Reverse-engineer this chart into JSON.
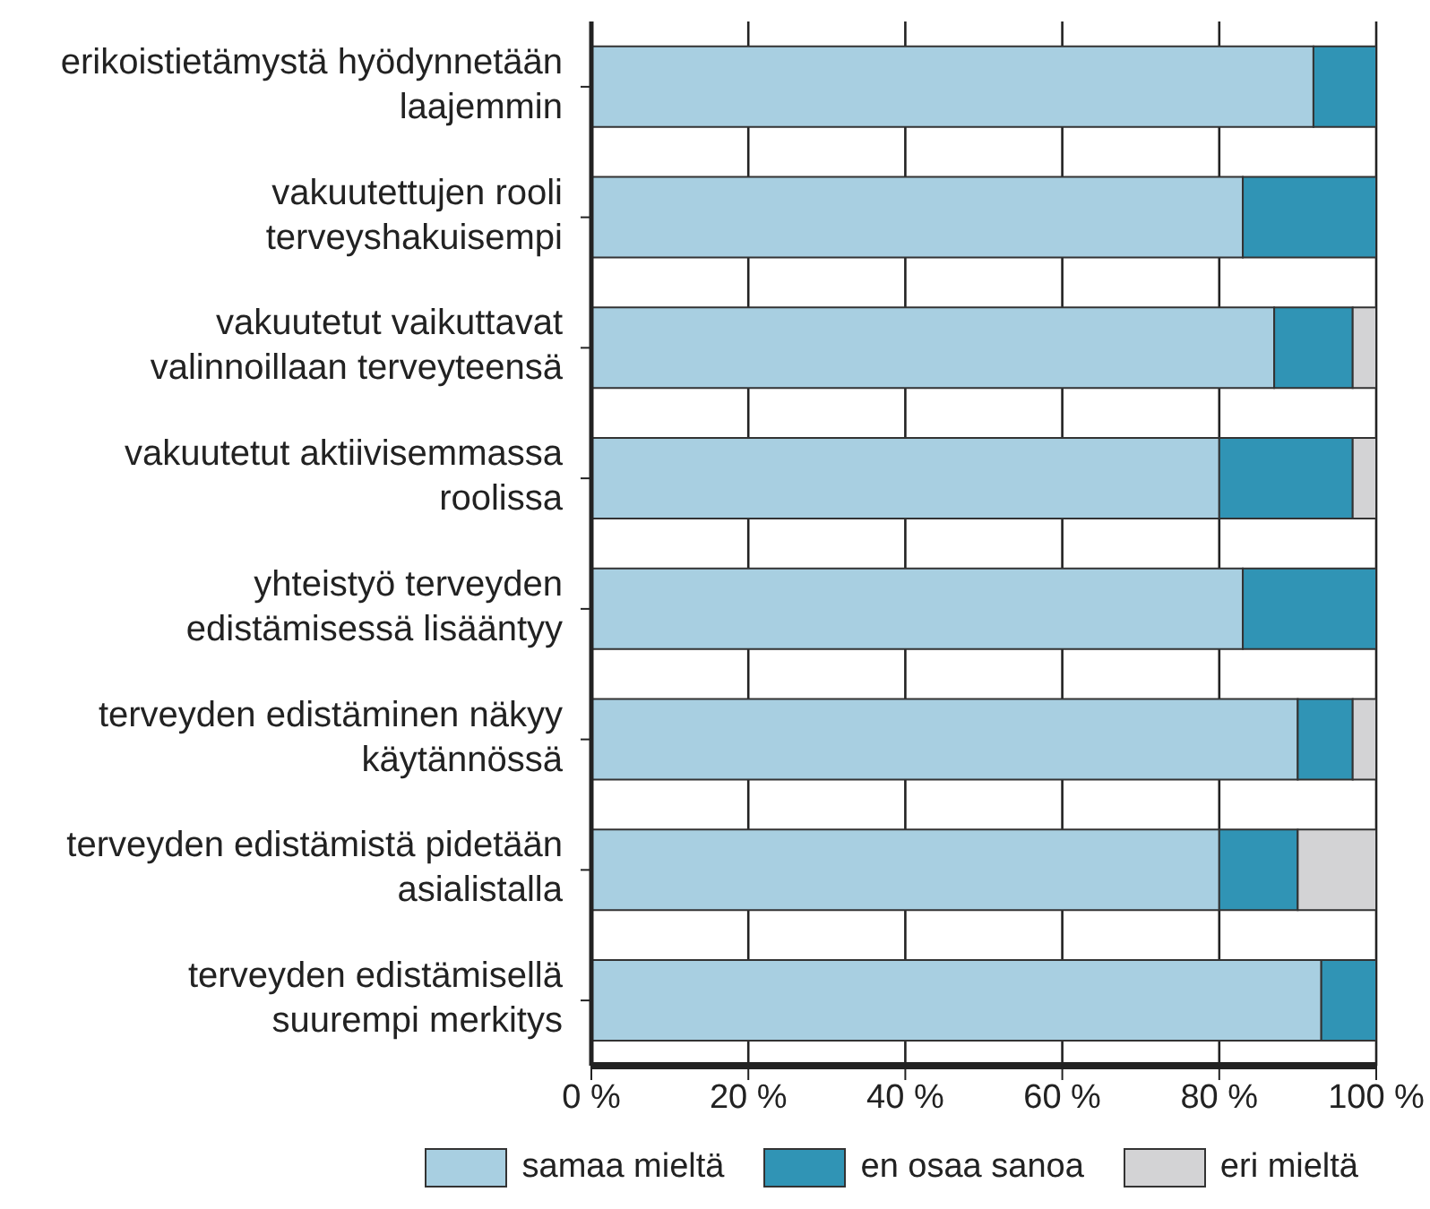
{
  "chart_data": {
    "type": "bar",
    "orientation": "horizontal",
    "stacked": true,
    "categories": [
      "erikoistietämystä hyödynnetään laajemmin",
      "vakuutettujen rooli terveyshakuisempi",
      "vakuutetut vaikuttavat valinnoillaan terveyteensä",
      "vakuutetut aktiivisemmassa roolissa",
      "yhteistyö terveyden edistämisessä lisääntyy",
      "terveyden edistäminen näkyy käytännössä",
      "terveyden edistämistä pidetään asialistalla",
      "terveyden edistämisellä suurempi merkitys"
    ],
    "series": [
      {
        "name": "samaa mieltä",
        "color": "#a8cfe1",
        "values": [
          92,
          83,
          87,
          80,
          83,
          90,
          80,
          93
        ]
      },
      {
        "name": "en osaa sanoa",
        "color": "#3094b5",
        "values": [
          8,
          17,
          10,
          17,
          17,
          7,
          10,
          7
        ]
      },
      {
        "name": "eri mieltä",
        "color": "#d3d3d5",
        "values": [
          0,
          0,
          3,
          3,
          0,
          3,
          10,
          0
        ]
      }
    ],
    "xlim": [
      0,
      100
    ],
    "xticks": [
      {
        "value": 0,
        "label": "0 %"
      },
      {
        "value": 20,
        "label": "20 %"
      },
      {
        "value": 40,
        "label": "40 %"
      },
      {
        "value": 60,
        "label": "60 %"
      },
      {
        "value": 80,
        "label": "80 %"
      },
      {
        "value": 100,
        "label": "100 %"
      }
    ],
    "grid": "x",
    "legend": "bottom"
  }
}
